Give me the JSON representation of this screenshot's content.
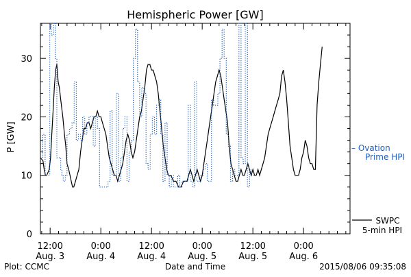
{
  "chart_data": {
    "type": "line",
    "title": "Hemispheric Power [GW]",
    "xlabel": "Date and Time",
    "ylabel": "P [GW]",
    "ylim": [
      0,
      36
    ],
    "yticks": [
      0,
      10,
      20,
      30
    ],
    "x_unit": "hours since Aug 3 00:00 UT",
    "xlim": [
      9.7,
      83
    ],
    "xticks": [
      {
        "x": 12,
        "top": "12:00",
        "bottom": "Aug. 3"
      },
      {
        "x": 24,
        "top": "0:00",
        "bottom": "Aug. 4"
      },
      {
        "x": 36,
        "top": "12:00",
        "bottom": "Aug. 4"
      },
      {
        "x": 48,
        "top": "0:00",
        "bottom": "Aug. 5"
      },
      {
        "x": 60,
        "top": "12:00",
        "bottom": "Aug. 5"
      },
      {
        "x": 72,
        "top": "0:00",
        "bottom": "Aug. 6"
      }
    ],
    "grid": false,
    "series": [
      {
        "name": "SWPC 5-min HPI",
        "style": "solid",
        "color": "#000000",
        "points": [
          [
            9.7,
            13
          ],
          [
            10.3,
            12.5
          ],
          [
            10.6,
            11
          ],
          [
            10.9,
            10
          ],
          [
            11.2,
            10
          ],
          [
            11.8,
            11
          ],
          [
            12.1,
            13
          ],
          [
            12.4,
            17
          ],
          [
            12.7,
            21
          ],
          [
            13.0,
            25
          ],
          [
            13.3,
            28
          ],
          [
            13.6,
            29
          ],
          [
            13.9,
            26
          ],
          [
            14.2,
            25
          ],
          [
            14.5,
            23
          ],
          [
            15.0,
            20
          ],
          [
            15.4,
            17
          ],
          [
            15.7,
            15
          ],
          [
            16.0,
            12
          ],
          [
            16.4,
            11
          ],
          [
            16.7,
            10
          ],
          [
            17.0,
            9
          ],
          [
            17.3,
            8
          ],
          [
            17.6,
            8
          ],
          [
            18.0,
            9
          ],
          [
            18.4,
            10
          ],
          [
            18.8,
            11
          ],
          [
            19.2,
            14
          ],
          [
            19.6,
            16
          ],
          [
            20.0,
            18
          ],
          [
            20.4,
            18
          ],
          [
            20.8,
            19
          ],
          [
            21.2,
            19
          ],
          [
            21.6,
            18
          ],
          [
            22.0,
            19
          ],
          [
            22.4,
            20
          ],
          [
            22.8,
            20
          ],
          [
            23.2,
            21
          ],
          [
            23.6,
            20
          ],
          [
            24.0,
            20
          ],
          [
            24.4,
            19
          ],
          [
            24.8,
            18
          ],
          [
            25.2,
            17
          ],
          [
            25.6,
            15
          ],
          [
            26.0,
            13
          ],
          [
            26.4,
            12
          ],
          [
            26.8,
            11
          ],
          [
            27.2,
            10
          ],
          [
            27.6,
            10
          ],
          [
            28.0,
            9
          ],
          [
            28.4,
            10
          ],
          [
            28.8,
            11
          ],
          [
            29.2,
            12
          ],
          [
            29.6,
            14
          ],
          [
            30.0,
            16
          ],
          [
            30.4,
            17
          ],
          [
            30.8,
            16
          ],
          [
            31.2,
            14
          ],
          [
            31.6,
            13
          ],
          [
            32.0,
            14
          ],
          [
            32.4,
            16
          ],
          [
            32.8,
            18
          ],
          [
            33.2,
            20
          ],
          [
            33.6,
            21
          ],
          [
            34.0,
            23
          ],
          [
            34.4,
            25
          ],
          [
            34.8,
            28
          ],
          [
            35.2,
            29
          ],
          [
            35.6,
            29
          ],
          [
            36.0,
            28
          ],
          [
            36.4,
            28
          ],
          [
            36.8,
            27
          ],
          [
            37.2,
            26
          ],
          [
            37.6,
            24
          ],
          [
            38.0,
            21
          ],
          [
            38.4,
            18
          ],
          [
            38.8,
            15
          ],
          [
            39.2,
            13
          ],
          [
            39.6,
            11
          ],
          [
            40.0,
            10
          ],
          [
            40.6,
            10
          ],
          [
            41.2,
            9
          ],
          [
            41.8,
            9
          ],
          [
            42.4,
            8
          ],
          [
            43.0,
            8
          ],
          [
            43.6,
            9
          ],
          [
            44.0,
            9
          ],
          [
            44.4,
            9
          ],
          [
            44.8,
            10
          ],
          [
            45.2,
            11
          ],
          [
            45.6,
            10
          ],
          [
            46.0,
            9
          ],
          [
            46.4,
            10
          ],
          [
            46.8,
            11
          ],
          [
            47.2,
            10
          ],
          [
            47.6,
            9
          ],
          [
            48.0,
            10
          ],
          [
            48.4,
            12
          ],
          [
            48.8,
            14
          ],
          [
            49.2,
            16
          ],
          [
            49.6,
            18
          ],
          [
            50.0,
            20
          ],
          [
            50.4,
            22
          ],
          [
            50.8,
            24
          ],
          [
            51.2,
            26
          ],
          [
            51.6,
            27
          ],
          [
            52.0,
            28
          ],
          [
            52.4,
            27
          ],
          [
            52.8,
            25
          ],
          [
            53.2,
            23
          ],
          [
            53.6,
            21
          ],
          [
            54.0,
            19
          ],
          [
            54.4,
            15
          ],
          [
            54.8,
            12
          ],
          [
            55.2,
            11
          ],
          [
            55.6,
            10
          ],
          [
            56.0,
            9
          ],
          [
            56.4,
            9
          ],
          [
            56.8,
            10
          ],
          [
            57.2,
            11
          ],
          [
            57.6,
            10
          ],
          [
            58.0,
            10
          ],
          [
            58.4,
            11
          ],
          [
            58.8,
            12
          ],
          [
            59.2,
            11
          ],
          [
            59.6,
            10
          ],
          [
            60.0,
            11
          ],
          [
            60.4,
            10
          ],
          [
            60.8,
            10
          ],
          [
            61.2,
            11
          ],
          [
            61.6,
            10
          ],
          [
            62.0,
            11
          ],
          [
            62.4,
            12
          ],
          [
            62.8,
            13
          ],
          [
            63.2,
            15
          ],
          [
            63.6,
            17
          ],
          [
            64.0,
            18
          ],
          [
            64.4,
            19
          ],
          [
            64.8,
            20
          ],
          [
            65.2,
            21
          ],
          [
            65.6,
            22
          ],
          [
            66.0,
            23
          ],
          [
            66.4,
            24
          ],
          [
            66.8,
            27
          ],
          [
            67.2,
            28
          ],
          [
            67.6,
            26
          ],
          [
            68.0,
            23
          ],
          [
            68.4,
            19
          ],
          [
            68.8,
            15
          ],
          [
            69.2,
            13
          ],
          [
            69.6,
            11
          ],
          [
            70.0,
            10
          ],
          [
            70.4,
            10
          ],
          [
            70.8,
            10
          ],
          [
            71.2,
            11
          ],
          [
            71.6,
            13
          ],
          [
            72.0,
            14
          ],
          [
            72.4,
            16
          ],
          [
            72.8,
            15
          ],
          [
            73.2,
            13
          ],
          [
            73.6,
            12
          ],
          [
            74.0,
            12
          ],
          [
            74.4,
            11
          ],
          [
            74.8,
            11
          ],
          [
            75.2,
            22
          ],
          [
            75.6,
            26
          ],
          [
            76.0,
            29
          ],
          [
            76.4,
            32
          ]
        ]
      },
      {
        "name": "Ovation Prime HPI",
        "style": "dotted-step",
        "color": "#1f5fbf",
        "points": [
          [
            9.7,
            13
          ],
          [
            10.2,
            17
          ],
          [
            10.8,
            10
          ],
          [
            11.4,
            10
          ],
          [
            11.9,
            36
          ],
          [
            12.3,
            34
          ],
          [
            12.8,
            36
          ],
          [
            13.2,
            30
          ],
          [
            13.6,
            13
          ],
          [
            14.1,
            13
          ],
          [
            14.5,
            11
          ],
          [
            14.8,
            10
          ],
          [
            15.1,
            9
          ],
          [
            15.6,
            10
          ],
          [
            16.0,
            17
          ],
          [
            16.6,
            18
          ],
          [
            17.2,
            19
          ],
          [
            17.7,
            26
          ],
          [
            18.2,
            16
          ],
          [
            18.7,
            17
          ],
          [
            19.2,
            16
          ],
          [
            19.7,
            20
          ],
          [
            20.2,
            17
          ],
          [
            20.7,
            19
          ],
          [
            21.2,
            20
          ],
          [
            21.7,
            20
          ],
          [
            22.2,
            15
          ],
          [
            22.7,
            20
          ],
          [
            23.2,
            18
          ],
          [
            23.7,
            8
          ],
          [
            24.2,
            8
          ],
          [
            24.7,
            8
          ],
          [
            25.2,
            8
          ],
          [
            25.7,
            9
          ],
          [
            26.2,
            21
          ],
          [
            26.7,
            10
          ],
          [
            27.2,
            10
          ],
          [
            27.7,
            24
          ],
          [
            28.2,
            9
          ],
          [
            28.7,
            13
          ],
          [
            29.2,
            18
          ],
          [
            29.7,
            20
          ],
          [
            30.2,
            9
          ],
          [
            30.7,
            14
          ],
          [
            31.2,
            16
          ],
          [
            31.7,
            30
          ],
          [
            32.2,
            35
          ],
          [
            32.7,
            26
          ],
          [
            33.2,
            20
          ],
          [
            33.7,
            25
          ],
          [
            34.2,
            24
          ],
          [
            34.7,
            12
          ],
          [
            35.2,
            11
          ],
          [
            35.7,
            17
          ],
          [
            36.2,
            20
          ],
          [
            36.7,
            17
          ],
          [
            37.2,
            22
          ],
          [
            37.7,
            23
          ],
          [
            38.2,
            17
          ],
          [
            38.7,
            9
          ],
          [
            39.2,
            19
          ],
          [
            39.7,
            10
          ],
          [
            40.2,
            8
          ],
          [
            40.7,
            10
          ],
          [
            41.2,
            8
          ],
          [
            41.7,
            8
          ],
          [
            42.2,
            10
          ],
          [
            42.7,
            8
          ],
          [
            43.2,
            9
          ],
          [
            43.7,
            9
          ],
          [
            44.2,
            9
          ],
          [
            44.7,
            22
          ],
          [
            45.2,
            9
          ],
          [
            45.7,
            8
          ],
          [
            46.2,
            26
          ],
          [
            46.7,
            9
          ],
          [
            47.2,
            9
          ],
          [
            47.7,
            10
          ],
          [
            48.2,
            11
          ],
          [
            48.7,
            12
          ],
          [
            49.2,
            9
          ],
          [
            49.7,
            9
          ],
          [
            50.2,
            23
          ],
          [
            50.7,
            22
          ],
          [
            51.2,
            22
          ],
          [
            51.7,
            24
          ],
          [
            52.2,
            30
          ],
          [
            52.7,
            35
          ],
          [
            53.2,
            30
          ],
          [
            53.7,
            17
          ],
          [
            54.2,
            15
          ],
          [
            54.7,
            9
          ],
          [
            55.2,
            11
          ],
          [
            55.7,
            10
          ],
          [
            56.2,
            10
          ],
          [
            56.7,
            36
          ],
          [
            57.2,
            13
          ],
          [
            57.7,
            12
          ],
          [
            58.2,
            36
          ],
          [
            58.7,
            8
          ],
          [
            59.2,
            11
          ],
          [
            59.7,
            10
          ],
          [
            60.2,
            10
          ]
        ]
      }
    ],
    "legend": [
      {
        "name": "SWPC 5-min HPI",
        "line1": "SWPC",
        "line2": "5-min HPI",
        "style": "solid",
        "color": "#000000",
        "placement": "right-bottom"
      },
      {
        "name": "Ovation Prime HPI",
        "line1": "– Ovation",
        "line2": "Prime HPI",
        "style": "dashed",
        "color": "#1f5fbf",
        "placement": "right-middle"
      }
    ]
  },
  "footer": {
    "credit": "Plot: CCMC",
    "timestamp": "2015/08/06 09:35:08"
  }
}
